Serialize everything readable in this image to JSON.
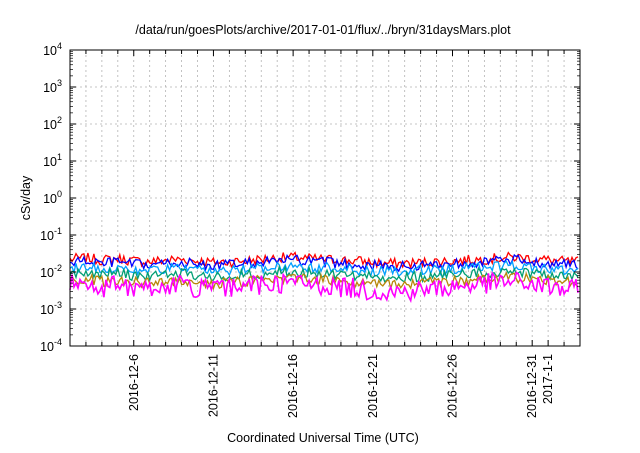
{
  "chart_data": {
    "type": "line",
    "title": "/data/run/goesPlots/archive/2017-01-01/flux/../bryn/31daysMars.plot",
    "xlabel": "Coordinated Universal Time (UTC)",
    "ylabel": "cSv/day",
    "yscale": "log",
    "ylim": [
      0.0001,
      10000
    ],
    "xlim": [
      "2016-12-02",
      "2017-01-03"
    ],
    "grid": true,
    "legend": "none",
    "y_ticks": [
      {
        "base": "10",
        "exp": "-4",
        "value": 0.0001
      },
      {
        "base": "10",
        "exp": "-3",
        "value": 0.001
      },
      {
        "base": "10",
        "exp": "-2",
        "value": 0.01
      },
      {
        "base": "10",
        "exp": "-1",
        "value": 0.1
      },
      {
        "base": "10",
        "exp": "0",
        "value": 1
      },
      {
        "base": "10",
        "exp": "1",
        "value": 10
      },
      {
        "base": "10",
        "exp": "2",
        "value": 100
      },
      {
        "base": "10",
        "exp": "3",
        "value": 1000
      },
      {
        "base": "10",
        "exp": "4",
        "value": 10000
      }
    ],
    "x_ticks": [
      {
        "label": "2016-12-6",
        "date": "2016-12-06"
      },
      {
        "label": "2016-12-11",
        "date": "2016-12-11"
      },
      {
        "label": "2016-12-16",
        "date": "2016-12-16"
      },
      {
        "label": "2016-12-21",
        "date": "2016-12-21"
      },
      {
        "label": "2016-12-26",
        "date": "2016-12-26"
      },
      {
        "label": "2016-12-31",
        "date": "2016-12-31"
      },
      {
        "label": "2017-1-1",
        "date": "2017-01-01"
      }
    ],
    "x_dates": [
      "2016-12-02",
      "2016-12-03",
      "2016-12-04",
      "2016-12-05",
      "2016-12-06",
      "2016-12-07",
      "2016-12-08",
      "2016-12-09",
      "2016-12-10",
      "2016-12-11",
      "2016-12-12",
      "2016-12-13",
      "2016-12-14",
      "2016-12-15",
      "2016-12-16",
      "2016-12-17",
      "2016-12-18",
      "2016-12-19",
      "2016-12-20",
      "2016-12-21",
      "2016-12-22",
      "2016-12-23",
      "2016-12-24",
      "2016-12-25",
      "2016-12-26",
      "2016-12-27",
      "2016-12-28",
      "2016-12-29",
      "2016-12-30",
      "2016-12-31",
      "2017-01-01",
      "2017-01-02"
    ],
    "series": [
      {
        "color": "#ff0000",
        "values": [
          0.022,
          0.024,
          0.021,
          0.023,
          0.02,
          0.019,
          0.021,
          0.022,
          0.02,
          0.018,
          0.019,
          0.02,
          0.022,
          0.024,
          0.025,
          0.023,
          0.022,
          0.021,
          0.02,
          0.018,
          0.017,
          0.017,
          0.018,
          0.019,
          0.02,
          0.021,
          0.022,
          0.024,
          0.025,
          0.023,
          0.021,
          0.019
        ]
      },
      {
        "color": "#0000ff",
        "values": [
          0.018,
          0.02,
          0.017,
          0.019,
          0.016,
          0.015,
          0.017,
          0.018,
          0.016,
          0.015,
          0.016,
          0.017,
          0.018,
          0.02,
          0.021,
          0.019,
          0.018,
          0.017,
          0.016,
          0.015,
          0.014,
          0.014,
          0.015,
          0.016,
          0.017,
          0.018,
          0.019,
          0.02,
          0.021,
          0.019,
          0.017,
          0.016
        ]
      },
      {
        "color": "#00a0ff",
        "values": [
          0.013,
          0.014,
          0.012,
          0.013,
          0.011,
          0.011,
          0.012,
          0.013,
          0.011,
          0.01,
          0.011,
          0.012,
          0.013,
          0.014,
          0.015,
          0.013,
          0.013,
          0.012,
          0.011,
          0.01,
          0.01,
          0.01,
          0.011,
          0.011,
          0.012,
          0.013,
          0.014,
          0.015,
          0.015,
          0.013,
          0.012,
          0.011
        ]
      },
      {
        "color": "#009e73",
        "values": [
          0.009,
          0.01,
          0.0085,
          0.0095,
          0.008,
          0.0078,
          0.0085,
          0.009,
          0.0082,
          0.0075,
          0.008,
          0.0085,
          0.009,
          0.01,
          0.0105,
          0.0095,
          0.009,
          0.0085,
          0.008,
          0.0074,
          0.0072,
          0.0072,
          0.0076,
          0.008,
          0.0085,
          0.009,
          0.0095,
          0.01,
          0.0105,
          0.0095,
          0.0088,
          0.008
        ]
      },
      {
        "color": "#b8860b",
        "values": [
          0.006,
          0.0065,
          0.0055,
          0.006,
          0.0052,
          0.005,
          0.0055,
          0.006,
          0.0053,
          0.0048,
          0.0052,
          0.0056,
          0.006,
          0.0066,
          0.007,
          0.0062,
          0.006,
          0.0056,
          0.0052,
          0.0048,
          0.0046,
          0.0046,
          0.005,
          0.0052,
          0.0056,
          0.006,
          0.0064,
          0.0068,
          0.007,
          0.0063,
          0.0058,
          0.0052
        ]
      },
      {
        "color": "#ff00ff",
        "values": [
          0.0045,
          0.005,
          0.0038,
          0.0045,
          0.0036,
          0.0034,
          0.0038,
          0.0044,
          0.0037,
          0.0032,
          0.0035,
          0.004,
          0.0045,
          0.005,
          0.0052,
          0.0045,
          0.0043,
          0.0039,
          0.0036,
          0.0031,
          0.0029,
          0.0029,
          0.0033,
          0.0035,
          0.0039,
          0.0044,
          0.0048,
          0.0052,
          0.0055,
          0.0046,
          0.004,
          0.0034
        ]
      }
    ]
  }
}
